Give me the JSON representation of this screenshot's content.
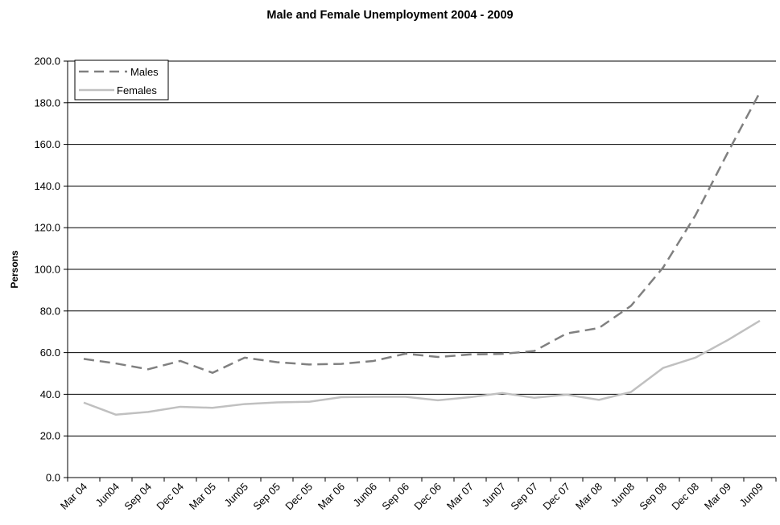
{
  "chart_data": {
    "type": "line",
    "title": "Male and Female Unemployment 2004 - 2009",
    "xlabel": "",
    "ylabel": "Persons",
    "ylim": [
      0,
      200
    ],
    "yticks": [
      "0.0",
      "20.0",
      "40.0",
      "60.0",
      "80.0",
      "100.0",
      "120.0",
      "140.0",
      "160.0",
      "180.0",
      "200.0"
    ],
    "grid": true,
    "legend_position": "top-left",
    "categories": [
      "Mar 04",
      "Jun04",
      "Sep 04",
      "Dec 04",
      "Mar 05",
      "Jun05",
      "Sep 05",
      "Dec 05",
      "Mar 06",
      "Jun06",
      "Sep 06",
      "Dec 06",
      "Mar 07",
      "Jun07",
      "Sep 07",
      "Dec 07",
      "Mar 08",
      "Jun08",
      "Sep 08",
      "Dec 08",
      "Mar 09",
      "Jun09"
    ],
    "series": [
      {
        "name": "Males",
        "style": "dashed",
        "color": "#808080",
        "values": [
          57.0,
          54.8,
          52.0,
          56.0,
          50.3,
          57.6,
          55.4,
          54.3,
          54.6,
          56.0,
          59.5,
          57.9,
          59.1,
          59.4,
          60.8,
          69.2,
          71.8,
          82.5,
          101.0,
          126.0,
          156.0,
          185.0
        ]
      },
      {
        "name": "Females",
        "style": "solid",
        "color": "#c0c0c0",
        "values": [
          36.0,
          30.2,
          31.5,
          34.0,
          33.5,
          35.3,
          36.1,
          36.4,
          38.6,
          38.8,
          38.8,
          37.1,
          38.6,
          40.6,
          38.3,
          39.8,
          37.3,
          41.1,
          52.7,
          57.6,
          66.0,
          75.3
        ]
      }
    ]
  }
}
